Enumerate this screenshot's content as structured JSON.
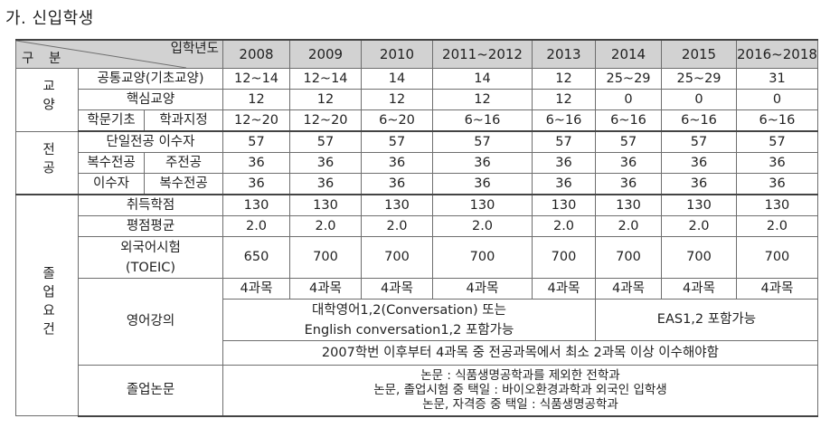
{
  "section_title": "가. 신입학생",
  "header": {
    "corner_top": "입학년도",
    "corner_bottom": "구 분",
    "years": [
      "2008",
      "2009",
      "2010",
      "2011~2012",
      "2013",
      "2014",
      "2015",
      "2016~2018"
    ]
  },
  "groups": {
    "liberal": "교양",
    "major": "전공",
    "grad": "졸업요건"
  },
  "rows": {
    "common": {
      "label": "공통교양(기초교양)",
      "values": [
        "12~14",
        "12~14",
        "14",
        "14",
        "12",
        "25~29",
        "25~29",
        "31"
      ]
    },
    "core": {
      "label": "핵심교양",
      "values": [
        "12",
        "12",
        "12",
        "12",
        "12",
        "0",
        "0",
        "0"
      ]
    },
    "basic": {
      "label1": "학문기초",
      "label2": "학과지정",
      "values": [
        "12~20",
        "12~20",
        "6~20",
        "6~16",
        "6~16",
        "6~16",
        "6~16",
        "6~16"
      ]
    },
    "single": {
      "label": "단일전공 이수자",
      "values": [
        "57",
        "57",
        "57",
        "57",
        "57",
        "57",
        "57",
        "57"
      ]
    },
    "double_main": {
      "label1": "복수전공",
      "label2": "주전공",
      "values": [
        "36",
        "36",
        "36",
        "36",
        "36",
        "36",
        "36",
        "36"
      ]
    },
    "double_sub": {
      "label1": "이수자",
      "label2": "복수전공",
      "values": [
        "36",
        "36",
        "36",
        "36",
        "36",
        "36",
        "36",
        "36"
      ]
    },
    "credits": {
      "label": "취득학점",
      "values": [
        "130",
        "130",
        "130",
        "130",
        "130",
        "130",
        "130",
        "130"
      ]
    },
    "gpa": {
      "label": "평점평균",
      "values": [
        "2.0",
        "2.0",
        "2.0",
        "2.0",
        "2.0",
        "2.0",
        "2.0",
        "2.0"
      ]
    },
    "toeic": {
      "label1": "외국어시험",
      "label2": "(TOEIC)",
      "values": [
        "650",
        "700",
        "700",
        "700",
        "700",
        "700",
        "700",
        "700"
      ]
    },
    "english": {
      "label": "영어강의",
      "values": [
        "4과목",
        "4과목",
        "4과목",
        "4과목",
        "4과목",
        "4과목",
        "4과목",
        "4과목"
      ],
      "note_a1": "대학영어1,2(Conversation) 또는",
      "note_a2": "English conversation1,2 포함가능",
      "note_b": "EAS1,2 포함가능",
      "note_c": "2007학번 이후부터 4과목 중 전공과목에서 최소 2과목 이상 이수해야함"
    },
    "thesis": {
      "label": "졸업논문",
      "line1": "논문 : 식품생명공학과를 제외한 전학과",
      "line2": "논문, 졸업시험 중 택일 : 바이오환경과학과 외국인 입학생",
      "line3": "논문, 자격증 중 택일  : 식품생명공학과"
    }
  }
}
